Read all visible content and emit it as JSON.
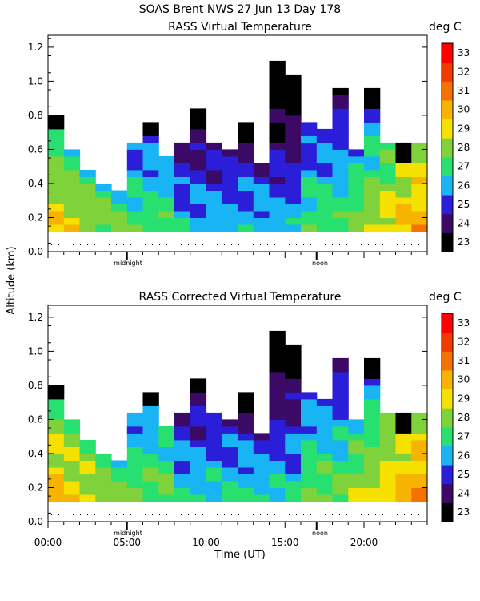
{
  "figure": {
    "title_line1": "SOAS Brent NWS  27 Jun 13 Day 178",
    "y_axis_label": "Altitude (km)",
    "x_axis_label": "Time (UT)",
    "x_tick_labels": [
      "00:00",
      "05:00",
      "10:00",
      "15:00",
      "20:00"
    ],
    "y_tick_labels": [
      "0.0",
      "0.2",
      "0.4",
      "0.6",
      "0.8",
      "1.0",
      "1.2"
    ],
    "markers": [
      "midnight",
      "noon"
    ],
    "colorbar_ticks": [
      "23",
      "24",
      "25",
      "26",
      "27",
      "28",
      "29",
      "30",
      "31",
      "32",
      "33"
    ]
  },
  "chart_data": [
    {
      "type": "heatmap",
      "title": "RASS Virtual Temperature",
      "units": "deg C",
      "xlabel": "",
      "ylabel": "Altitude (km)",
      "xlim": [
        0,
        24
      ],
      "ylim": [
        0,
        1.27
      ],
      "levels": [
        23,
        24,
        25,
        26,
        27,
        28,
        29,
        30,
        31,
        32,
        33,
        34
      ],
      "level_colors": [
        "#000000",
        "#3a0a66",
        "#2a1ed8",
        "#18b4f4",
        "#28e070",
        "#7fd23a",
        "#f6e000",
        "#f6b400",
        "#f57200",
        "#f13a00",
        "#ff0000"
      ],
      "annotations": [
        {
          "label": "midnight",
          "x": 5.0
        },
        {
          "label": "noon",
          "x": 17.0
        }
      ],
      "times_hours": [
        0,
        1,
        2,
        3,
        4,
        5,
        6,
        7,
        8,
        9,
        10,
        11,
        12,
        13,
        14,
        15,
        16,
        17,
        18,
        19,
        20,
        21,
        22,
        23
      ],
      "heights_km": [
        0.12,
        0.16,
        0.2,
        0.24,
        0.28,
        0.32,
        0.36,
        0.4,
        0.44,
        0.48,
        0.52,
        0.56,
        0.6,
        0.64,
        0.68,
        0.72,
        0.76,
        0.8,
        0.84,
        0.88,
        0.92,
        0.96,
        1.0,
        1.04,
        1.08,
        1.12,
        1.16,
        1.2,
        1.24
      ],
      "max_height_km": [
        0.78,
        0.56,
        0.45,
        0.37,
        0.34,
        0.62,
        0.75,
        0.55,
        0.6,
        0.82,
        0.62,
        0.56,
        0.72,
        0.48,
        1.1,
        1.0,
        0.74,
        0.7,
        0.95,
        0.58,
        0.92,
        0.6,
        0.6,
        0.6
      ],
      "dark_top_columns": [
        0,
        6,
        9,
        12,
        14,
        20,
        22
      ],
      "description": "Warm (29-32 C) near surface late day (18-23 UT); cool 25-26 C aloft 09-15 UT."
    },
    {
      "type": "heatmap",
      "title": "RASS Corrected Virtual Temperature",
      "units": "deg C",
      "xlabel": "Time (UT)",
      "ylabel": "Altitude (km)",
      "xlim": [
        0,
        24
      ],
      "ylim": [
        0,
        1.27
      ],
      "levels": [
        23,
        24,
        25,
        26,
        27,
        28,
        29,
        30,
        31,
        32,
        33,
        34
      ],
      "level_colors": [
        "#000000",
        "#3a0a66",
        "#2a1ed8",
        "#18b4f4",
        "#28e070",
        "#7fd23a",
        "#f6e000",
        "#f6b400",
        "#f57200",
        "#f13a00",
        "#ff0000"
      ],
      "annotations": [
        {
          "label": "midnight",
          "x": 5.0
        },
        {
          "label": "noon",
          "x": 17.0
        }
      ],
      "times_hours": [
        0,
        1,
        2,
        3,
        4,
        5,
        6,
        7,
        8,
        9,
        10,
        11,
        12,
        13,
        14,
        15,
        16,
        17,
        18,
        19,
        20,
        21,
        22,
        23
      ],
      "heights_km": [
        0.12,
        0.16,
        0.2,
        0.24,
        0.28,
        0.32,
        0.36,
        0.4,
        0.44,
        0.48,
        0.52,
        0.56,
        0.6,
        0.64,
        0.68,
        0.72,
        0.76,
        0.8,
        0.84,
        0.88,
        0.92,
        0.96,
        1.0,
        1.04,
        1.08,
        1.12,
        1.16,
        1.2,
        1.24
      ],
      "max_height_km": [
        0.78,
        0.56,
        0.45,
        0.37,
        0.34,
        0.62,
        0.75,
        0.55,
        0.6,
        0.82,
        0.62,
        0.56,
        0.72,
        0.48,
        1.1,
        1.0,
        0.74,
        0.7,
        0.95,
        0.58,
        0.92,
        0.6,
        0.6,
        0.6
      ],
      "dark_top_columns": [
        0,
        6,
        9,
        12,
        14,
        20,
        22
      ],
      "description": "Similar structure; slightly warmer overall after correction."
    }
  ]
}
